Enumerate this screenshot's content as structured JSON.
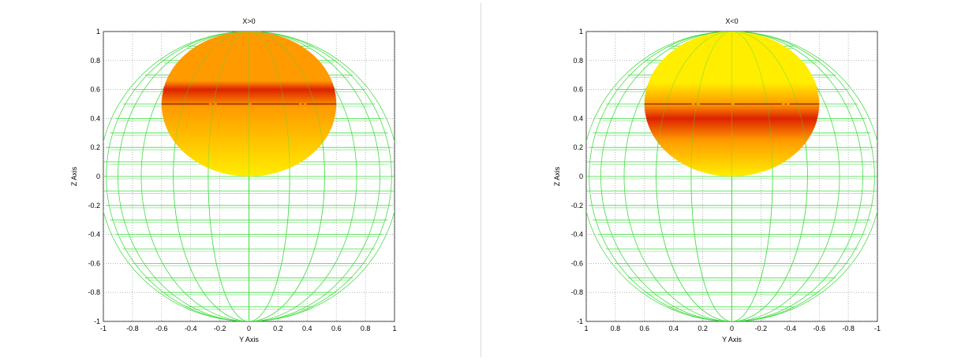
{
  "chart_data": [
    {
      "type": "surface",
      "title": "X>0",
      "xlabel": "Y Axis",
      "ylabel": "Z Axis",
      "xlim": [
        -1,
        1
      ],
      "ylim": [
        -1,
        1
      ],
      "xticks": [
        "-1",
        "-0.8",
        "-0.6",
        "-0.4",
        "-0.2",
        "0",
        "0.2",
        "0.4",
        "0.6",
        "0.8",
        "1"
      ],
      "yticks": [
        "1",
        "0.8",
        "0.6",
        "0.4",
        "0.2",
        "0",
        "-0.2",
        "-0.4",
        "-0.6",
        "-0.8",
        "-1"
      ],
      "grid": true,
      "wireframe_sphere": {
        "center": [
          0,
          0
        ],
        "radius": 1,
        "color": "#44dd44"
      },
      "surface_ellipse": {
        "center": [
          0,
          0.5
        ],
        "radius_y": 0.6,
        "radius_z": 0.5,
        "dark_band_z": 0.6,
        "marker_line_z": 0.5
      },
      "colors": {
        "light": "#ffee00",
        "mid": "#ff9a00",
        "dark": "#dd2200"
      }
    },
    {
      "type": "surface",
      "title": "X<0",
      "xlabel": "Y Axis",
      "ylabel": "Z Axis",
      "xlim": [
        1,
        -1
      ],
      "ylim": [
        -1,
        1
      ],
      "xticks": [
        "1",
        "0.8",
        "0.6",
        "0.4",
        "0.2",
        "0",
        "-0.2",
        "-0.4",
        "-0.6",
        "-0.8",
        "-1"
      ],
      "yticks": [
        "1",
        "0.8",
        "0.6",
        "0.4",
        "0.2",
        "0",
        "-0.2",
        "-0.4",
        "-0.6",
        "-0.8",
        "-1"
      ],
      "grid": true,
      "wireframe_sphere": {
        "center": [
          0,
          0
        ],
        "radius": 1,
        "color": "#44dd44"
      },
      "surface_ellipse": {
        "center": [
          0,
          0.5
        ],
        "radius_y": 0.6,
        "radius_z": 0.5,
        "dark_band_z": 0.4,
        "marker_line_z": 0.5
      },
      "colors": {
        "light": "#ffee00",
        "mid": "#ff9a00",
        "dark": "#dd2200"
      }
    }
  ]
}
